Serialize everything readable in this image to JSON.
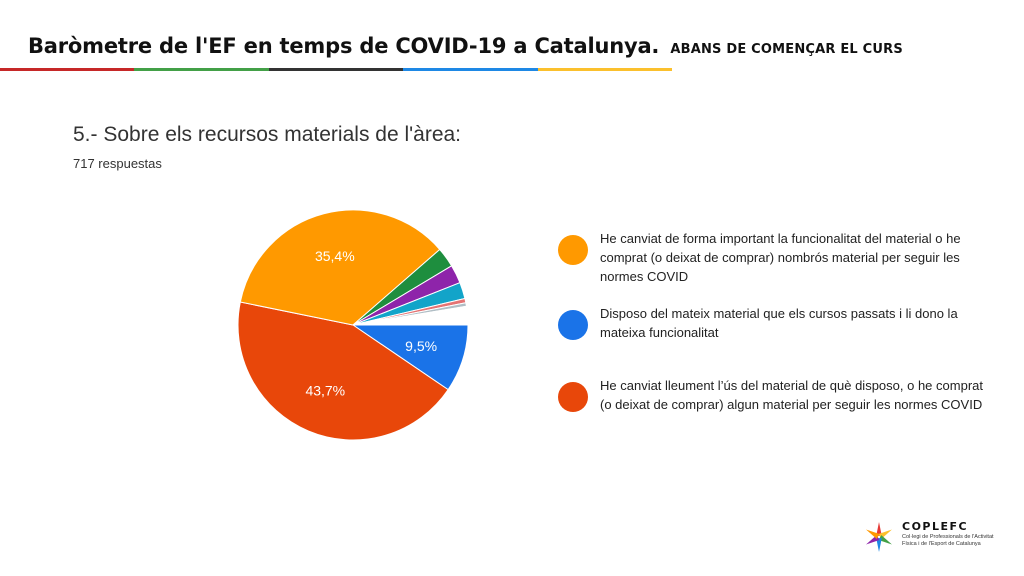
{
  "header": {
    "title": "Baròmetre de l'EF en temps de COVID-19 a Catalunya.",
    "subtitle": "ABANS DE COMENÇAR EL CURS",
    "bar_colors": [
      "#c62828",
      "#43a047",
      "#333333",
      "#1e88e5",
      "#fbc02d"
    ]
  },
  "question": {
    "title": "5.- Sobre els recursos materials de l'àrea:",
    "responses": "717 respuestas"
  },
  "chart_data": {
    "type": "pie",
    "start_angle_deg": 90,
    "slices": [
      {
        "label": "Disposo del mateix material que els cursos passats i li dono la mateixa funcionalitat",
        "value": 9.5,
        "color": "#1a73e8",
        "display": "9,5%"
      },
      {
        "label": "He canviat lleument l’ús del material de què disposo, o he comprat (o deixat de comprar) algun material per seguir les normes COVID",
        "value": 43.7,
        "color": "#e8470a",
        "display": "43,7%"
      },
      {
        "label": "He canviat de forma important la funcionalitat del material o he comprat (o deixat de comprar) nombrós material per seguir les normes COVID",
        "value": 35.4,
        "color": "#ff9900",
        "display": "35,4%"
      },
      {
        "label": "",
        "value": 2.8,
        "color": "#1e8e3e",
        "display": ""
      },
      {
        "label": "",
        "value": 2.6,
        "color": "#8e24aa",
        "display": ""
      },
      {
        "label": "",
        "value": 2.3,
        "color": "#12a4c9",
        "display": ""
      },
      {
        "label": "",
        "value": 0.6,
        "color": "#e57373",
        "display": ""
      },
      {
        "label": "",
        "value": 0.5,
        "color": "#b0bec5",
        "display": ""
      },
      {
        "label": "",
        "value": 2.6,
        "color": "#ffffff",
        "display": ""
      }
    ]
  },
  "legend": [
    {
      "text": "He canviat de forma important la funcionalitat del material o he comprat (o deixat de comprar) nombrós material per seguir les normes COVID",
      "color": "#ff9900"
    },
    {
      "text": "Disposo del mateix material que els cursos passats i li dono la mateixa funcionalitat",
      "color": "#1a73e8"
    },
    {
      "text": "He canviat lleument l’ús del material de què disposo, o he comprat (o deixat de comprar) algun material per seguir les normes COVID",
      "color": "#e8470a"
    }
  ],
  "logo": {
    "name": "COPLEFC",
    "sub": "Col·legi de Professionals de l'Activitat Física i de l'Esport de Catalunya",
    "colors": [
      "#e53935",
      "#fbc02d",
      "#43a047",
      "#1e88e5",
      "#8e24aa",
      "#ff9800"
    ]
  }
}
